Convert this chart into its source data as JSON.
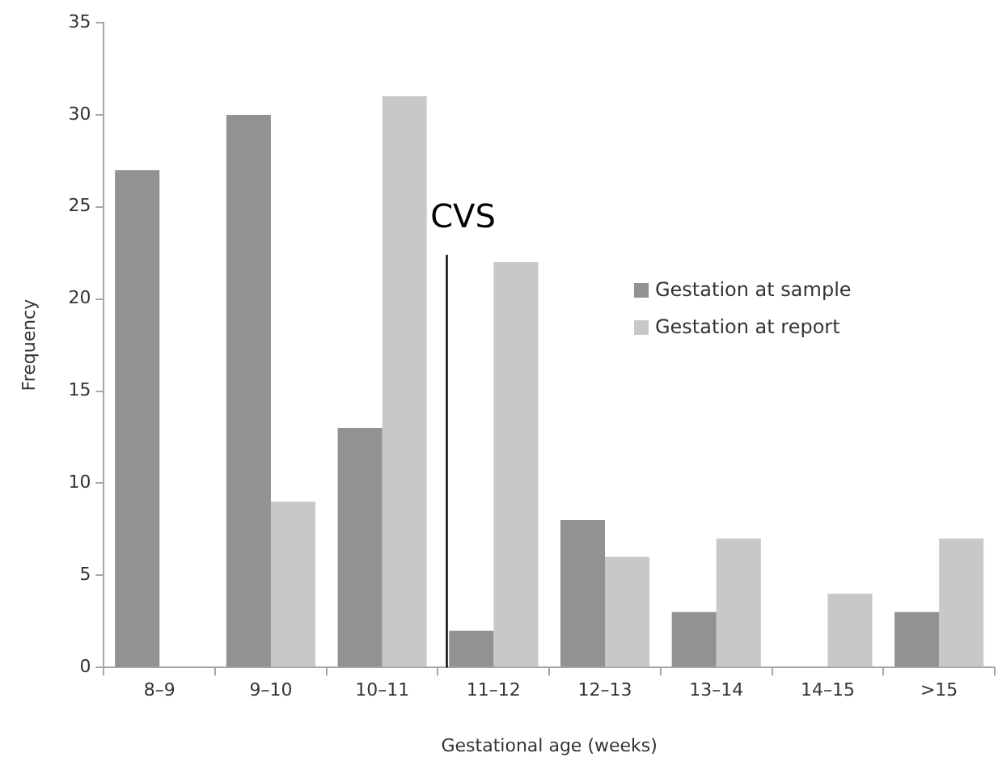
{
  "chart_data": {
    "type": "bar",
    "xlabel": "Gestational age (weeks)",
    "ylabel": "Frequency",
    "categories": [
      "8–9",
      "9–10",
      "10–11",
      "11–12",
      "12–13",
      "13–14",
      "14–15",
      ">15"
    ],
    "series": [
      {
        "name": "Gestation at sample",
        "color": "#929295",
        "values": [
          27,
          30,
          13,
          2,
          8,
          3,
          null,
          3
        ]
      },
      {
        "name": "Gestation at report",
        "color": "#c7c8ca",
        "values": [
          null,
          9,
          31,
          22,
          6,
          7,
          4,
          7
        ]
      }
    ],
    "ylim": [
      0,
      35
    ],
    "yticks": [
      0,
      5,
      10,
      15,
      20,
      25,
      30,
      35
    ],
    "grid": false,
    "legend": "right",
    "ref_lines": [
      {
        "axis": "x",
        "value": "11–12",
        "label": "CVS",
        "color": "#000000"
      }
    ]
  }
}
